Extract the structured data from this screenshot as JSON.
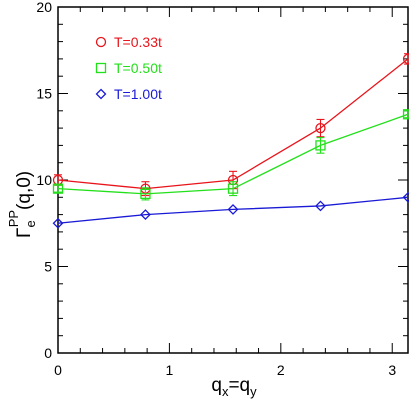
{
  "chart_data": {
    "type": "line",
    "xlabel": {
      "main": "q",
      "sub1": "x",
      "eq": "=",
      "main2": "q",
      "sub2": "y"
    },
    "ylabel": {
      "main": "Γ",
      "sub": "e",
      "sup": "PP",
      "args": "(q,0)"
    },
    "xlim": [
      0,
      3.14159
    ],
    "ylim": [
      0,
      20
    ],
    "x_ticks": [
      0,
      1,
      2,
      3
    ],
    "y_ticks": [
      0,
      5,
      10,
      15,
      20
    ],
    "legend_position": "top-left",
    "series": [
      {
        "name": "T=0.33t",
        "color": "#e8141b",
        "marker": "circle",
        "x": [
          0,
          0.785,
          1.571,
          2.356,
          3.142
        ],
        "y": [
          10.0,
          9.5,
          10.0,
          13.0,
          17.0
        ],
        "err": [
          0.3,
          0.4,
          0.5,
          0.5,
          0.3
        ]
      },
      {
        "name": "T=0.50t",
        "color": "#22e01a",
        "marker": "square",
        "x": [
          0,
          0.785,
          1.571,
          2.356,
          3.142
        ],
        "y": [
          9.5,
          9.2,
          9.5,
          12.0,
          13.8
        ],
        "err": [
          0.2,
          0.35,
          0.4,
          0.45,
          0.2
        ]
      },
      {
        "name": "T=1.00t",
        "color": "#1a1ad6",
        "marker": "diamond",
        "x": [
          0,
          0.785,
          1.571,
          2.356,
          3.142
        ],
        "y": [
          7.5,
          8.0,
          8.3,
          8.5,
          9.0
        ],
        "err": [
          0.05,
          0.05,
          0.05,
          0.05,
          0.05
        ]
      }
    ]
  }
}
